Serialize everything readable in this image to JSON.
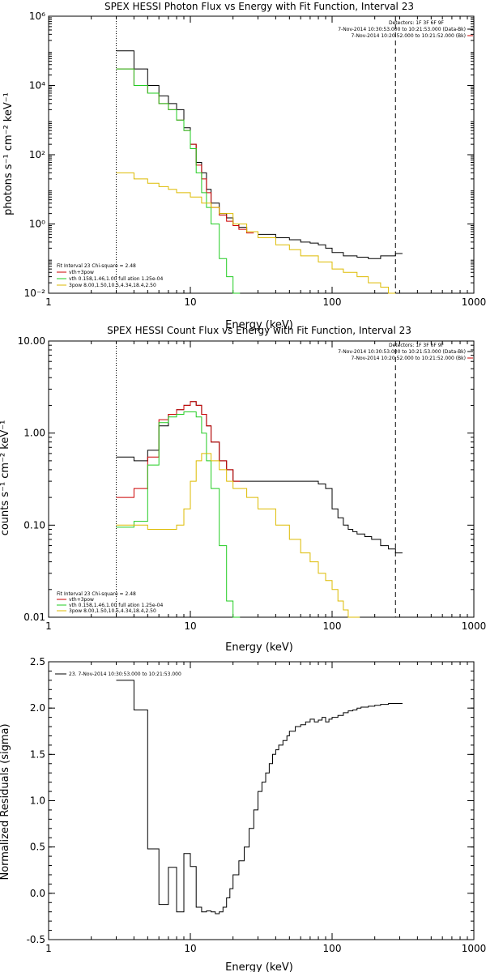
{
  "charts": [
    {
      "title": "SPEX HESSI Photon Flux vs Energy with Fit Function, Interval 23",
      "xlabel": "Energy (keV)",
      "ylabel": "photons s⁻¹ cm⁻² keV⁻¹",
      "x_ticks": [
        "1",
        "10",
        "100",
        "1000"
      ],
      "y_ticks": [
        "10⁻²",
        "10⁰",
        "10²",
        "10⁴",
        "10⁶"
      ],
      "legend_top": {
        "detectors": "Detectors: 1F 3F 6F 9F",
        "lines": [
          {
            "text": "7-Nov-2014 10:30:53.000 to 10:21:53.000 (Data-Bk)",
            "color": "#000000"
          },
          {
            "text": "7-Nov-2014 10:20:52.000 to 10:21:52.000 (Bk)",
            "color": "#cc0000"
          }
        ]
      },
      "legend_bottom": {
        "header": "Fit Interval 23   Chi-square = 2.48",
        "lines": [
          {
            "text": "vth+3pow",
            "color": "#cc0000"
          },
          {
            "text": "vth 0.158,1.46,1.00  full ation 1.25e-04",
            "color": "#22cc22"
          },
          {
            "text": "3pow 8.00,1.50,10.5,4.34,18.4,2.50",
            "color": "#ddbb00"
          }
        ]
      }
    },
    {
      "title": "SPEX HESSI Count Flux vs Energy with Fit Function, Interval 23",
      "xlabel": "Energy (keV)",
      "ylabel": "counts s⁻¹ cm⁻² keV⁻¹",
      "x_ticks": [
        "1",
        "10",
        "100",
        "1000"
      ],
      "y_ticks": [
        "0.01",
        "0.10",
        "1.00",
        "10.00"
      ],
      "legend_top": {
        "detectors": "Detectors: 1F 3F 6F 9F",
        "lines": [
          {
            "text": "7-Nov-2014 10:30:53.000 to 10:21:53.000 (Data-Bk)",
            "color": "#000000"
          },
          {
            "text": "7-Nov-2014 10:20:52.000 to 10:21:52.000 (Bk)",
            "color": "#cc0000"
          }
        ]
      },
      "legend_bottom": {
        "header": "Fit Interval 23   Chi-square = 2.48",
        "lines": [
          {
            "text": "vth+3pow",
            "color": "#cc0000"
          },
          {
            "text": "vth 0.158,1.46,1.00  full ation 1.25e-04",
            "color": "#22cc22"
          },
          {
            "text": "3pow 8.00,1.50,10.5,4.34,18.4,2.50",
            "color": "#ddbb00"
          }
        ]
      }
    },
    {
      "title": "",
      "xlabel": "Energy (keV)",
      "ylabel": "Normalized Residuals (sigma)",
      "x_ticks": [
        "1",
        "10",
        "100",
        "1000"
      ],
      "y_ticks": [
        "-0.5",
        "0.0",
        "0.5",
        "1.0",
        "1.5",
        "2.0",
        "2.5"
      ],
      "legend_top": {
        "detectors": "",
        "lines": [
          {
            "text": "23.  7-Nov-2014 10:30:53.000 to 10:21:53.000",
            "color": "#000000"
          }
        ]
      },
      "legend_bottom": null
    }
  ],
  "chart_data": [
    {
      "type": "line",
      "xscale": "log",
      "yscale": "log",
      "xlim": [
        1,
        1000
      ],
      "ylim": [
        0.01,
        1000000
      ],
      "vlines": [
        {
          "x": 3,
          "style": "dotted",
          "color": "#000000"
        },
        {
          "x": 280,
          "style": "dashed",
          "color": "#000000"
        }
      ],
      "series": [
        {
          "name": "Data-Bk",
          "color": "#000000",
          "x": [
            3,
            4,
            5,
            6,
            7,
            8,
            9,
            10,
            11,
            12,
            13,
            14,
            16,
            18,
            20,
            22,
            25,
            30,
            40,
            50,
            60,
            70,
            80,
            90,
            100,
            120,
            150,
            180,
            220,
            280
          ],
          "y": [
            100000,
            30000,
            10000,
            5000,
            3000,
            2000,
            600,
            200,
            60,
            30,
            10,
            4,
            2,
            1.5,
            1,
            0.8,
            0.6,
            0.5,
            0.4,
            0.35,
            0.3,
            0.28,
            0.25,
            0.2,
            0.15,
            0.12,
            0.11,
            0.1,
            0.12,
            0.14
          ]
        },
        {
          "name": "vth+3pow",
          "color": "#cc0000",
          "x": [
            3,
            4,
            5,
            6,
            7,
            8,
            9,
            10,
            11,
            12,
            13,
            14,
            16,
            18,
            20,
            22,
            25
          ],
          "y": [
            30000,
            10000,
            6000,
            3000,
            2000,
            1000,
            500,
            200,
            50,
            20,
            8,
            3,
            1.8,
            1.2,
            0.9,
            0.7,
            0.55
          ]
        },
        {
          "name": "vth",
          "color": "#22cc22",
          "x": [
            3,
            4,
            5,
            6,
            7,
            8,
            9,
            10,
            11,
            12,
            13,
            14,
            16,
            18,
            20
          ],
          "y": [
            30000,
            10000,
            6000,
            3000,
            2000,
            1000,
            500,
            150,
            30,
            8,
            3,
            1,
            0.1,
            0.03,
            0.01
          ]
        },
        {
          "name": "3pow",
          "color": "#ddbb00",
          "x": [
            3,
            4,
            5,
            6,
            7,
            8,
            10,
            12,
            14,
            16,
            20,
            25,
            30,
            40,
            50,
            60,
            80,
            100,
            120,
            150,
            180,
            220,
            250
          ],
          "y": [
            30,
            20,
            15,
            12,
            10,
            8,
            6,
            4,
            3,
            2,
            1,
            0.6,
            0.4,
            0.25,
            0.18,
            0.12,
            0.08,
            0.05,
            0.04,
            0.03,
            0.02,
            0.015,
            0.01
          ]
        }
      ]
    },
    {
      "type": "line",
      "xscale": "log",
      "yscale": "log",
      "xlim": [
        1,
        1000
      ],
      "ylim": [
        0.01,
        10
      ],
      "vlines": [
        {
          "x": 3,
          "style": "dotted",
          "color": "#000000"
        },
        {
          "x": 280,
          "style": "dashed",
          "color": "#000000"
        }
      ],
      "series": [
        {
          "name": "Data-Bk",
          "color": "#000000",
          "x": [
            3,
            4,
            5,
            6,
            7,
            8,
            9,
            10,
            11,
            12,
            13,
            14,
            16,
            18,
            20,
            22,
            25,
            30,
            40,
            50,
            60,
            70,
            80,
            90,
            100,
            110,
            120,
            130,
            140,
            150,
            170,
            190,
            220,
            250,
            280
          ],
          "y": [
            0.55,
            0.5,
            0.65,
            1.2,
            1.6,
            1.8,
            2.0,
            2.2,
            2.0,
            1.6,
            1.2,
            0.8,
            0.5,
            0.4,
            0.3,
            0.3,
            0.3,
            0.3,
            0.3,
            0.3,
            0.3,
            0.3,
            0.28,
            0.25,
            0.15,
            0.12,
            0.1,
            0.09,
            0.085,
            0.08,
            0.075,
            0.07,
            0.06,
            0.055,
            0.05
          ]
        },
        {
          "name": "vth+3pow",
          "color": "#cc0000",
          "x": [
            3,
            4,
            5,
            6,
            7,
            8,
            9,
            10,
            11,
            12,
            13,
            14,
            16,
            18,
            20
          ],
          "y": [
            0.2,
            0.25,
            0.55,
            1.4,
            1.6,
            1.8,
            2.0,
            2.2,
            2.0,
            1.6,
            1.2,
            0.8,
            0.5,
            0.4,
            0.3
          ]
        },
        {
          "name": "vth",
          "color": "#22cc22",
          "x": [
            3,
            4,
            5,
            6,
            7,
            8,
            9,
            10,
            11,
            12,
            13,
            14,
            16,
            18,
            20
          ],
          "y": [
            0.095,
            0.11,
            0.45,
            1.3,
            1.5,
            1.6,
            1.7,
            1.7,
            1.5,
            1.0,
            0.5,
            0.25,
            0.06,
            0.015,
            0.01
          ]
        },
        {
          "name": "3pow",
          "color": "#ddbb00",
          "x": [
            3,
            4,
            5,
            6,
            7,
            8,
            9,
            10,
            11,
            12,
            13,
            14,
            16,
            18,
            20,
            25,
            30,
            40,
            50,
            60,
            70,
            80,
            90,
            100,
            110,
            120,
            130,
            140
          ],
          "y": [
            0.1,
            0.1,
            0.09,
            0.09,
            0.09,
            0.1,
            0.15,
            0.3,
            0.5,
            0.6,
            0.6,
            0.5,
            0.4,
            0.3,
            0.25,
            0.2,
            0.15,
            0.1,
            0.07,
            0.05,
            0.04,
            0.03,
            0.025,
            0.02,
            0.015,
            0.012,
            0.01,
            0.008
          ]
        }
      ]
    },
    {
      "type": "line",
      "xscale": "log",
      "yscale": "linear",
      "xlim": [
        1,
        1000
      ],
      "ylim": [
        -0.5,
        2.5
      ],
      "series": [
        {
          "name": "Residuals",
          "color": "#000000",
          "x": [
            3,
            4,
            5,
            6,
            7,
            8,
            9,
            10,
            11,
            12,
            13,
            14,
            15,
            16,
            17,
            18,
            19,
            20,
            22,
            24,
            26,
            28,
            30,
            32,
            34,
            36,
            38,
            40,
            42,
            45,
            48,
            50,
            55,
            60,
            65,
            70,
            75,
            80,
            85,
            90,
            95,
            100,
            110,
            120,
            130,
            140,
            150,
            160,
            180,
            200,
            220,
            250,
            280
          ],
          "y": [
            2.3,
            1.98,
            0.48,
            -0.12,
            0.28,
            -0.2,
            0.43,
            0.29,
            -0.15,
            -0.2,
            -0.19,
            -0.2,
            -0.22,
            -0.2,
            -0.15,
            -0.05,
            0.05,
            0.2,
            0.35,
            0.5,
            0.7,
            0.9,
            1.1,
            1.2,
            1.3,
            1.4,
            1.5,
            1.55,
            1.6,
            1.65,
            1.7,
            1.75,
            1.8,
            1.82,
            1.85,
            1.88,
            1.85,
            1.87,
            1.9,
            1.85,
            1.88,
            1.9,
            1.92,
            1.95,
            1.97,
            1.98,
            2.0,
            2.01,
            2.02,
            2.03,
            2.04,
            2.05,
            2.05
          ]
        }
      ]
    }
  ]
}
